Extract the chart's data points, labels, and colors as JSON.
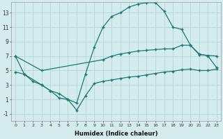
{
  "xlabel": "Humidex (Indice chaleur)",
  "bg_color": "#d4ecee",
  "grid_color": "#b8d8da",
  "line_color": "#1a7a6e",
  "xlim": [
    -0.5,
    23.5
  ],
  "ylim": [
    -2.0,
    14.5
  ],
  "xticks": [
    0,
    1,
    2,
    3,
    4,
    5,
    6,
    7,
    8,
    9,
    10,
    11,
    12,
    13,
    14,
    15,
    16,
    17,
    18,
    19,
    20,
    21,
    22,
    23
  ],
  "yticks": [
    -1,
    1,
    3,
    5,
    7,
    9,
    11,
    13
  ],
  "series1_x": [
    0,
    1,
    3,
    4,
    5,
    6,
    7,
    8,
    9,
    10,
    11,
    12,
    13,
    14,
    15,
    16,
    17,
    18,
    19,
    20,
    21,
    22,
    23
  ],
  "series1_y": [
    7.0,
    4.5,
    3.0,
    2.2,
    1.2,
    1.0,
    0.5,
    4.5,
    8.2,
    11.0,
    12.5,
    13.0,
    13.8,
    14.2,
    14.4,
    14.4,
    13.2,
    11.0,
    10.7,
    8.5,
    7.3,
    7.0,
    5.4
  ],
  "series2_x": [
    0,
    3,
    10,
    11,
    12,
    13,
    14,
    15,
    16,
    17,
    18,
    19,
    20,
    21,
    22,
    23
  ],
  "series2_y": [
    7.0,
    5.0,
    6.5,
    7.0,
    7.3,
    7.5,
    7.7,
    7.8,
    7.9,
    8.0,
    8.0,
    8.5,
    8.5,
    7.2,
    7.1,
    7.0
  ],
  "series3_x": [
    0,
    1,
    2,
    3,
    4,
    5,
    6,
    7,
    8,
    9,
    10,
    11,
    12,
    13,
    14,
    15,
    16,
    17,
    18,
    19,
    20,
    21,
    22,
    23
  ],
  "series3_y": [
    4.8,
    4.5,
    3.5,
    3.0,
    2.2,
    1.8,
    1.0,
    -0.5,
    1.5,
    3.2,
    3.5,
    3.7,
    3.9,
    4.1,
    4.2,
    4.4,
    4.6,
    4.8,
    4.9,
    5.1,
    5.2,
    5.0,
    5.0,
    5.2
  ]
}
